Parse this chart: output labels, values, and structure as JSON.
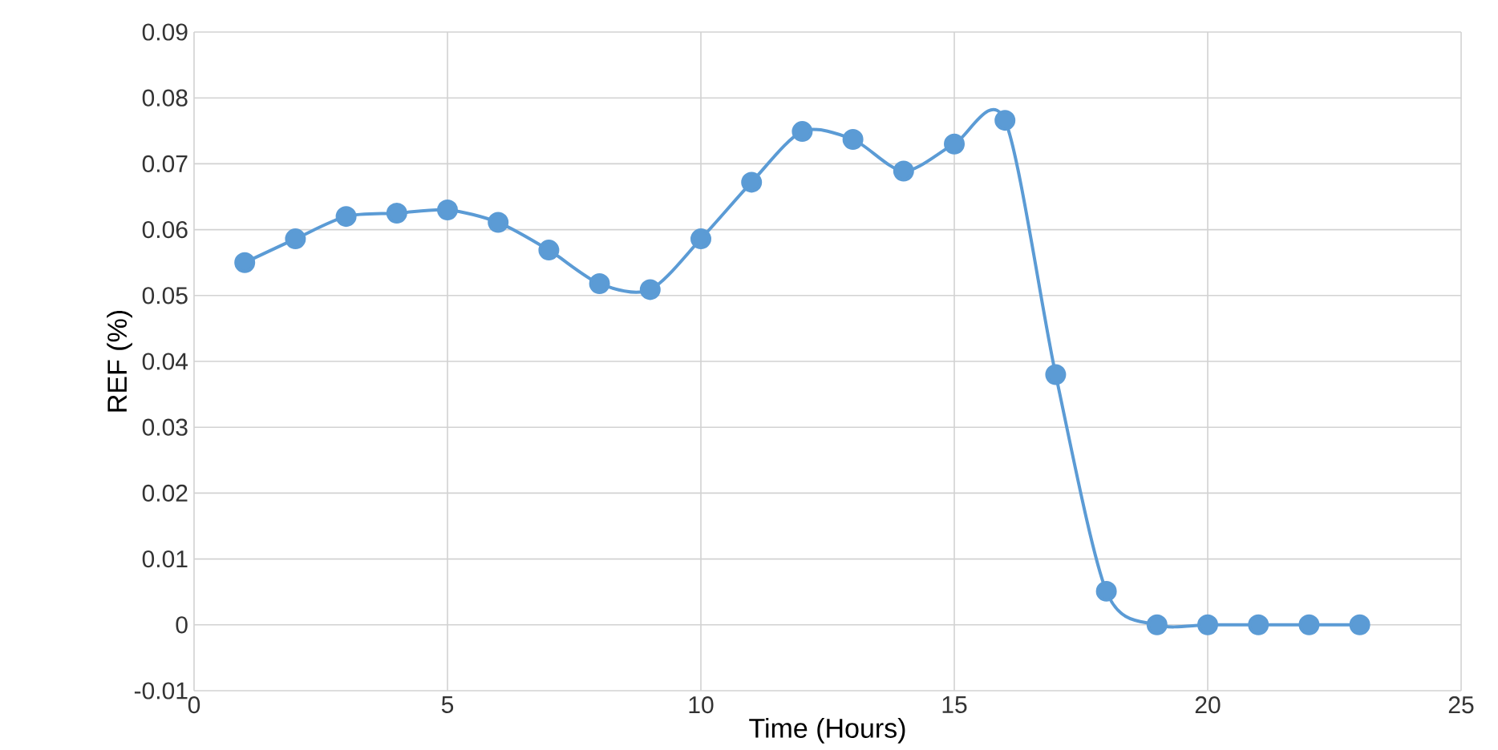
{
  "chart_data": {
    "type": "line",
    "xlabel": "Time (Hours)",
    "ylabel": "REF (%)",
    "x": [
      1,
      2,
      3,
      4,
      5,
      6,
      7,
      8,
      9,
      10,
      11,
      12,
      13,
      14,
      15,
      16,
      17,
      18,
      19,
      20,
      21,
      22,
      23
    ],
    "series": [
      {
        "color": "#5b9bd5",
        "values": [
          0.055,
          0.0586,
          0.062,
          0.0625,
          0.063,
          0.0611,
          0.0569,
          0.0518,
          0.0509,
          0.0586,
          0.0672,
          0.0749,
          0.0737,
          0.0689,
          0.073,
          0.0766,
          0.038,
          0.0051,
          0,
          0,
          0,
          0,
          0
        ]
      }
    ],
    "xlim": [
      0,
      25
    ],
    "xticks": [
      0,
      5,
      10,
      15,
      20,
      25
    ],
    "ylim": [
      -0.01,
      0.09
    ],
    "yticks": [
      -0.01,
      0,
      0.01,
      0.02,
      0.03,
      0.04,
      0.05,
      0.06,
      0.07,
      0.08,
      0.09
    ],
    "grid": true,
    "marker": "circle",
    "line_style": "solid"
  }
}
